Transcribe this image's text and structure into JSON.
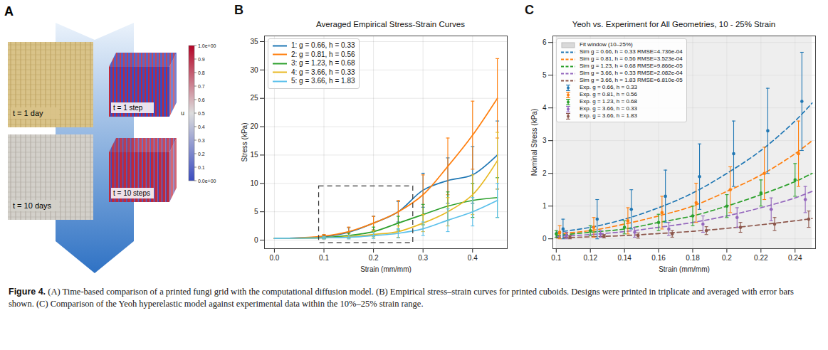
{
  "figure": {
    "caption_label": "Figure 4.",
    "caption": "(A) Time-based comparison of a printed fungi grid with the computational diffusion model. (B) Empirical stress–strain curves for printed cuboids. Designs were printed in triplicate and averaged with error bars shown. (C) Comparison of the Yeoh hyperelastic model against experimental data within the 10%–25% strain range."
  },
  "panel_a": {
    "panel_label": "A",
    "photos": [
      "t = 1 day",
      "t = 10 days"
    ],
    "simulations": [
      "t = 1 step",
      "t = 10 steps"
    ],
    "colorbar": {
      "label": "u",
      "range": [
        0,
        1
      ],
      "ticks": [
        {
          "value": 1,
          "label": "1.0e+00"
        },
        0.9,
        0.8,
        0.7,
        0.6,
        0.5,
        0.4,
        0.3,
        0.2,
        0.1,
        {
          "value": 0,
          "label": "0.0e+00"
        }
      ]
    }
  },
  "chart_data": [
    {
      "panel_label": "B",
      "type": "line",
      "title": "Averaged Empirical Stress-Strain Curves",
      "x_label": "Strain (mm/mm)",
      "y_label": "Stress (kPa)",
      "xlim": [
        -0.02,
        0.47
      ],
      "ylim": [
        -1.5,
        36
      ],
      "xticks": [
        {
          "value": 0,
          "label": "0.0"
        },
        0.1,
        0.2,
        0.3,
        0.4
      ],
      "yticks": [
        0,
        5,
        10,
        15,
        20,
        25,
        30,
        35
      ],
      "grid": true,
      "legend": "upper left",
      "zoom_box": {
        "x": [
          0.09,
          0.28
        ],
        "y": [
          -0.5,
          9.5
        ]
      },
      "x": [
        0,
        0.05,
        0.1,
        0.15,
        0.2,
        0.25,
        0.3,
        0.35,
        0.4,
        0.45
      ],
      "series": [
        {
          "name": "1: g = 0.66, h = 0.33",
          "color": "#1f77b4",
          "values": [
            0.3,
            0.4,
            0.6,
            1.4,
            3.0,
            5.0,
            8.8,
            10.5,
            11.5,
            15.0
          ],
          "errors": [
            null,
            null,
            0.3,
            0.8,
            1.2,
            1.8,
            3.0,
            4.0,
            5.0,
            6.0
          ]
        },
        {
          "name": "2: g = 0.81, h = 0.56",
          "color": "#ff7f0e",
          "values": [
            0.3,
            0.4,
            0.7,
            1.5,
            3.0,
            5.0,
            8.0,
            13.0,
            18.5,
            25.0
          ],
          "errors": [
            null,
            null,
            0.3,
            0.8,
            1.2,
            2.0,
            3.5,
            5.0,
            6.0,
            7.0
          ]
        },
        {
          "name": "3: g = 1.23, h = 0.68",
          "color": "#2ca02c",
          "values": [
            0.3,
            0.35,
            0.45,
            0.8,
            1.5,
            3.0,
            4.5,
            6.0,
            7.0,
            7.5
          ],
          "errors": [
            null,
            null,
            0.2,
            0.4,
            0.8,
            1.2,
            1.8,
            2.5,
            3.0,
            3.5
          ]
        },
        {
          "name": "4: g = 3.66, h = 0.33",
          "color": "#e8b923",
          "values": [
            0.3,
            0.35,
            0.4,
            0.6,
            1.0,
            1.5,
            3.0,
            5.0,
            8.0,
            14.0
          ],
          "errors": [
            null,
            null,
            0.2,
            0.3,
            0.6,
            1.0,
            1.5,
            2.5,
            3.5,
            5.0
          ]
        },
        {
          "name": "5: g = 3.66, h = 1.83",
          "color": "#5bc0eb",
          "values": [
            0.3,
            0.35,
            0.4,
            0.5,
            0.8,
            1.2,
            2.0,
            3.5,
            5.0,
            7.0
          ],
          "errors": [
            null,
            null,
            0.2,
            0.3,
            0.5,
            0.8,
            1.2,
            2.0,
            2.5,
            3.0
          ]
        }
      ]
    },
    {
      "panel_label": "C",
      "type": "line",
      "title": "Yeoh vs. Experiment for All Geometries, 10 - 25% Strain",
      "x_label": "Strain (mm/mm)",
      "y_label": "Nominal Stress (kPa)",
      "xlim": [
        0.098,
        0.252
      ],
      "ylim": [
        -0.3,
        6.2
      ],
      "xticks": [
        0.1,
        0.12,
        0.14,
        0.16,
        0.18,
        0.2,
        0.22,
        0.24
      ],
      "yticks": [
        0,
        1,
        2,
        3,
        4,
        5,
        6
      ],
      "grid": true,
      "legend": "upper left",
      "fit_window": {
        "label": "Fit window (10–25%)",
        "x": [
          0.1,
          0.25
        ]
      },
      "series": [
        {
          "name": "Sim g = 0.66, h = 0.33 RMSE=4.736e-04",
          "type": "line",
          "line_style": "dashed",
          "color": "#1f77b4",
          "x": [
            0.1,
            0.12,
            0.14,
            0.16,
            0.18,
            0.2,
            0.22,
            0.24,
            0.25
          ],
          "values": [
            0.2,
            0.35,
            0.6,
            0.95,
            1.4,
            2.0,
            2.7,
            3.6,
            4.15
          ]
        },
        {
          "name": "Sim g = 0.81, h = 0.56 RMSE=3.523e-04",
          "type": "line",
          "line_style": "dashed",
          "color": "#ff7f0e",
          "x": [
            0.1,
            0.12,
            0.14,
            0.16,
            0.18,
            0.2,
            0.22,
            0.24,
            0.25
          ],
          "values": [
            0.15,
            0.25,
            0.45,
            0.7,
            1.0,
            1.45,
            1.95,
            2.6,
            3.0
          ]
        },
        {
          "name": "Sim g = 1.23, h = 0.68 RMSE=9.866e-05",
          "type": "line",
          "line_style": "dashed",
          "color": "#2ca02c",
          "x": [
            0.1,
            0.12,
            0.14,
            0.16,
            0.18,
            0.2,
            0.22,
            0.24,
            0.25
          ],
          "values": [
            0.1,
            0.2,
            0.3,
            0.5,
            0.7,
            1.0,
            1.35,
            1.75,
            2.0
          ]
        },
        {
          "name": "Sim g = 3.66, h = 0.33 RMSE=2.082e-04",
          "type": "line",
          "line_style": "dashed",
          "color": "#9467bd",
          "x": [
            0.1,
            0.12,
            0.14,
            0.16,
            0.18,
            0.2,
            0.22,
            0.24,
            0.25
          ],
          "values": [
            0.07,
            0.13,
            0.22,
            0.35,
            0.5,
            0.7,
            0.95,
            1.25,
            1.45
          ]
        },
        {
          "name": "Sim g = 3.66, h = 1.83 RMSE=6.810e-05",
          "type": "line",
          "line_style": "dashed",
          "color": "#8c564b",
          "x": [
            0.1,
            0.12,
            0.14,
            0.16,
            0.18,
            0.2,
            0.22,
            0.24,
            0.25
          ],
          "values": [
            0.03,
            0.06,
            0.1,
            0.16,
            0.23,
            0.32,
            0.43,
            0.55,
            0.62
          ]
        },
        {
          "name": "Exp. g = 0.66, h = 0.33",
          "type": "scatter",
          "marker": "errorbar",
          "color": "#1f77b4",
          "x": [
            0.104,
            0.124,
            0.144,
            0.164,
            0.184,
            0.204,
            0.224,
            0.244
          ],
          "values": [
            0.3,
            0.6,
            0.9,
            1.3,
            1.9,
            2.6,
            3.3,
            4.2
          ],
          "errors": [
            0.3,
            0.6,
            0.6,
            0.8,
            1.0,
            1.0,
            1.3,
            1.5
          ]
        },
        {
          "name": "Exp. g = 0.81, h = 0.56",
          "type": "scatter",
          "marker": "errorbar",
          "color": "#ff7f0e",
          "x": [
            0.102,
            0.122,
            0.142,
            0.162,
            0.182,
            0.202,
            0.222,
            0.242
          ],
          "values": [
            0.2,
            0.35,
            0.55,
            0.8,
            1.1,
            1.5,
            2.0,
            2.6
          ],
          "errors": [
            0.2,
            0.3,
            0.4,
            0.5,
            0.6,
            0.7,
            0.8,
            1.0
          ]
        },
        {
          "name": "Exp. g = 1.23, h = 0.68",
          "type": "scatter",
          "marker": "errorbar",
          "color": "#2ca02c",
          "x": [
            0.1,
            0.12,
            0.14,
            0.16,
            0.18,
            0.2,
            0.22,
            0.24
          ],
          "values": [
            0.15,
            0.25,
            0.35,
            0.5,
            0.7,
            1.0,
            1.4,
            1.8
          ],
          "errors": [
            0.1,
            0.15,
            0.2,
            0.25,
            0.3,
            0.35,
            0.4,
            0.5
          ]
        },
        {
          "name": "Exp. g = 3.66, h = 0.33",
          "type": "scatter",
          "marker": "errorbar",
          "color": "#9467bd",
          "x": [
            0.106,
            0.126,
            0.146,
            0.166,
            0.186,
            0.206,
            0.226,
            0.246
          ],
          "values": [
            0.1,
            0.15,
            0.2,
            0.3,
            0.45,
            0.65,
            0.9,
            1.2
          ],
          "errors": [
            0.1,
            0.1,
            0.15,
            0.2,
            0.25,
            0.3,
            0.35,
            0.4
          ]
        },
        {
          "name": "Exp. g = 3.66, h = 1.83",
          "type": "scatter",
          "marker": "errorbar",
          "color": "#8c564b",
          "x": [
            0.108,
            0.128,
            0.148,
            0.168,
            0.188,
            0.208,
            0.228,
            0.248
          ],
          "values": [
            0.05,
            0.08,
            0.1,
            0.15,
            0.25,
            0.35,
            0.45,
            0.6
          ],
          "errors": [
            0.05,
            0.05,
            0.08,
            0.1,
            0.12,
            0.15,
            0.2,
            0.25
          ]
        }
      ]
    }
  ]
}
